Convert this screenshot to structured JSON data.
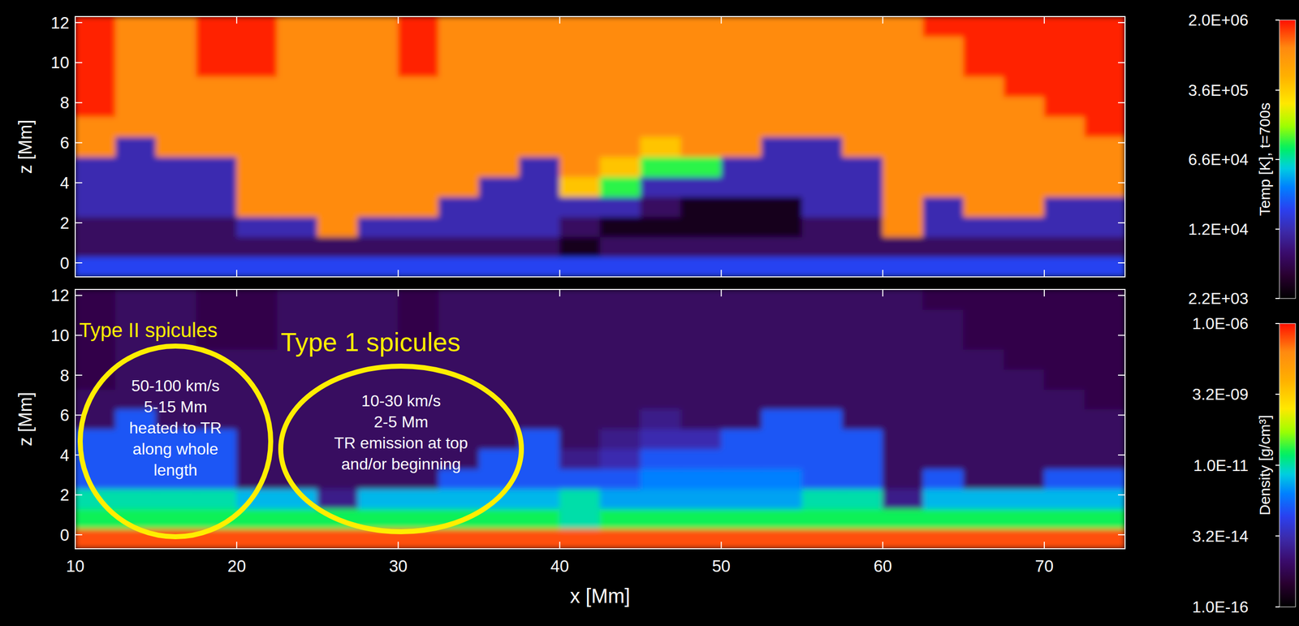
{
  "chart_data": [
    {
      "type": "heatmap",
      "ylabel": "z [Mm]",
      "x": [
        11.25,
        13.75,
        16.25,
        18.75,
        21.25,
        23.75,
        26.25,
        28.75,
        31.25,
        33.75,
        36.25,
        38.75,
        41.25,
        43.75,
        46.25,
        48.75,
        51.25,
        53.75,
        56.25,
        58.75,
        61.25,
        63.75,
        66.25,
        68.75,
        71.25,
        73.75
      ],
      "y": [
        -0.2,
        0.8,
        1.8,
        2.8,
        3.8,
        4.8,
        5.8,
        6.8,
        7.8,
        8.8,
        9.8,
        10.8,
        11.8
      ],
      "cells": [
        [
          20000.0,
          20000.0,
          20000.0,
          20000.0,
          20000.0,
          20000.0,
          20000.0,
          20000.0,
          20000.0,
          20000.0,
          20000.0,
          20000.0,
          20000.0,
          20000.0,
          20000.0,
          20000.0,
          20000.0,
          20000.0,
          20000.0,
          20000.0,
          20000.0,
          20000.0,
          20000.0,
          20000.0,
          20000.0,
          20000.0
        ],
        [
          6000.0,
          6000.0,
          6000.0,
          6000.0,
          6000.0,
          6000.0,
          6000.0,
          6000.0,
          6000.0,
          6000.0,
          6000.0,
          6000.0,
          3000.0,
          6000.0,
          6000.0,
          6000.0,
          6000.0,
          6000.0,
          6000.0,
          6000.0,
          6000.0,
          6000.0,
          6000.0,
          6000.0,
          6000.0,
          6000.0
        ],
        [
          6000.0,
          6000.0,
          6000.0,
          6000.0,
          12000.0,
          12000.0,
          1000000.0,
          12000.0,
          12000.0,
          12000.0,
          12000.0,
          12000.0,
          6000.0,
          3000.0,
          3000.0,
          3000.0,
          3000.0,
          3000.0,
          6000.0,
          6000.0,
          1000000.0,
          12000.0,
          12000.0,
          12000.0,
          12000.0,
          12000.0
        ],
        [
          12000.0,
          12000.0,
          12000.0,
          12000.0,
          1000000.0,
          1000000.0,
          1000000.0,
          1000000.0,
          1000000.0,
          12000.0,
          12000.0,
          12000.0,
          12000.0,
          12000.0,
          6000.0,
          3000.0,
          3000.0,
          3000.0,
          12000.0,
          12000.0,
          1000000.0,
          12000.0,
          1000000.0,
          1000000.0,
          12000.0,
          12000.0
        ],
        [
          12000.0,
          12000.0,
          12000.0,
          12000.0,
          1000000.0,
          1000000.0,
          1000000.0,
          1000000.0,
          1000000.0,
          1000000.0,
          12000.0,
          12000.0,
          400000.0,
          100000.0,
          12000.0,
          12000.0,
          12000.0,
          12000.0,
          12000.0,
          12000.0,
          1000000.0,
          1000000.0,
          1000000.0,
          1000000.0,
          1000000.0,
          1000000.0
        ],
        [
          12000.0,
          12000.0,
          12000.0,
          12000.0,
          1000000.0,
          1000000.0,
          1000000.0,
          1000000.0,
          1000000.0,
          1000000.0,
          1000000.0,
          12000.0,
          1000000.0,
          400000.0,
          100000.0,
          100000.0,
          12000.0,
          12000.0,
          12000.0,
          12000.0,
          1000000.0,
          1000000.0,
          1000000.0,
          1000000.0,
          1000000.0,
          1000000.0
        ],
        [
          1000000.0,
          12000.0,
          1000000.0,
          1000000.0,
          1000000.0,
          1000000.0,
          1000000.0,
          1000000.0,
          1000000.0,
          1000000.0,
          1000000.0,
          1000000.0,
          1000000.0,
          1000000.0,
          400000.0,
          1000000.0,
          1000000.0,
          12000.0,
          12000.0,
          1000000.0,
          1000000.0,
          1000000.0,
          1000000.0,
          1000000.0,
          1000000.0,
          1000000.0
        ],
        [
          1000000.0,
          1000000.0,
          1000000.0,
          1000000.0,
          1000000.0,
          1000000.0,
          1000000.0,
          1000000.0,
          1000000.0,
          1000000.0,
          1000000.0,
          1000000.0,
          1000000.0,
          1000000.0,
          1000000.0,
          1000000.0,
          1000000.0,
          1000000.0,
          1000000.0,
          1000000.0,
          1000000.0,
          1000000.0,
          1000000.0,
          1000000.0,
          1000000.0,
          1800000.0
        ],
        [
          1800000.0,
          1000000.0,
          1000000.0,
          1000000.0,
          1000000.0,
          1000000.0,
          1000000.0,
          1000000.0,
          1000000.0,
          1000000.0,
          1000000.0,
          1000000.0,
          1000000.0,
          1000000.0,
          1000000.0,
          1000000.0,
          1000000.0,
          1000000.0,
          1000000.0,
          1000000.0,
          1000000.0,
          1000000.0,
          1000000.0,
          1000000.0,
          1800000.0,
          1800000.0
        ],
        [
          1800000.0,
          1000000.0,
          1000000.0,
          1000000.0,
          1000000.0,
          1000000.0,
          1000000.0,
          1000000.0,
          1000000.0,
          1000000.0,
          1000000.0,
          1000000.0,
          1000000.0,
          1000000.0,
          1000000.0,
          1000000.0,
          1000000.0,
          1000000.0,
          1000000.0,
          1000000.0,
          1000000.0,
          1000000.0,
          1000000.0,
          1800000.0,
          1800000.0,
          1800000.0
        ],
        [
          1800000.0,
          1000000.0,
          1000000.0,
          1800000.0,
          1800000.0,
          1000000.0,
          1000000.0,
          1000000.0,
          1800000.0,
          1000000.0,
          1000000.0,
          1000000.0,
          1000000.0,
          1000000.0,
          1000000.0,
          1000000.0,
          1000000.0,
          1000000.0,
          1000000.0,
          1000000.0,
          1000000.0,
          1000000.0,
          1800000.0,
          1800000.0,
          1800000.0,
          1800000.0
        ],
        [
          1800000.0,
          1000000.0,
          1000000.0,
          1800000.0,
          1800000.0,
          1000000.0,
          1000000.0,
          1000000.0,
          1800000.0,
          1000000.0,
          1000000.0,
          1000000.0,
          1000000.0,
          1000000.0,
          1000000.0,
          1000000.0,
          1000000.0,
          1000000.0,
          1000000.0,
          1000000.0,
          1000000.0,
          1000000.0,
          1800000.0,
          1800000.0,
          1800000.0,
          1800000.0
        ],
        [
          1800000.0,
          1000000.0,
          1000000.0,
          1800000.0,
          1800000.0,
          1000000.0,
          1000000.0,
          1000000.0,
          1800000.0,
          1000000.0,
          1000000.0,
          1000000.0,
          1000000.0,
          1000000.0,
          1000000.0,
          1000000.0,
          1000000.0,
          1000000.0,
          1000000.0,
          1000000.0,
          1000000.0,
          1800000.0,
          1800000.0,
          1800000.0,
          1800000.0,
          1800000.0
        ]
      ],
      "xlim": [
        10,
        75
      ],
      "ylim": [
        -0.7,
        12.3
      ],
      "xticks": [
        10,
        20,
        30,
        40,
        50,
        60,
        70
      ],
      "yticks": [
        0,
        2,
        4,
        6,
        8,
        10,
        12
      ],
      "tick_labels": "y",
      "colorbar": {
        "label": "Temp [K], t=700s",
        "range": [
          2200,
          2000000
        ],
        "ticks": [
          {
            "value": 2200,
            "label": "2.2E+03"
          },
          {
            "value": 12000,
            "label": "1.2E+04"
          },
          {
            "value": 66000,
            "label": "6.6E+04"
          },
          {
            "value": 360000,
            "label": "3.6E+05"
          },
          {
            "value": 2000000,
            "label": "2.0E+06"
          }
        ]
      }
    },
    {
      "type": "heatmap",
      "xlabel": "x [Mm]",
      "ylabel": "z [Mm]",
      "x": [
        11.25,
        13.75,
        16.25,
        18.75,
        21.25,
        23.75,
        26.25,
        28.75,
        31.25,
        33.75,
        36.25,
        38.75,
        41.25,
        43.75,
        46.25,
        48.75,
        51.25,
        53.75,
        56.25,
        58.75,
        61.25,
        63.75,
        66.25,
        68.75,
        71.25,
        73.75
      ],
      "y": [
        -0.2,
        0.8,
        1.8,
        2.8,
        3.8,
        4.8,
        5.8,
        6.8,
        7.8,
        8.8,
        9.8,
        10.8,
        11.8
      ],
      "cells": [
        [
          3e-07,
          3e-07,
          3e-07,
          3e-07,
          3e-07,
          3e-07,
          3e-07,
          3e-07,
          3e-07,
          3e-07,
          3e-07,
          3e-07,
          3e-07,
          3e-07,
          3e-07,
          3e-07,
          3e-07,
          3e-07,
          3e-07,
          3e-07,
          3e-07,
          3e-07,
          3e-07,
          3e-07,
          3e-07,
          3e-07
        ],
        [
          3e-11,
          3e-11,
          3e-11,
          3e-11,
          3e-11,
          3e-11,
          3e-11,
          3e-11,
          3e-11,
          3e-11,
          3e-11,
          3e-11,
          1e-11,
          3e-11,
          3e-11,
          3e-11,
          3e-11,
          3e-11,
          3e-11,
          3e-11,
          3e-11,
          3e-11,
          3e-11,
          3e-11,
          3e-11,
          3e-11
        ],
        [
          1e-11,
          1e-11,
          1e-11,
          1e-11,
          3e-12,
          3e-12,
          1e-14,
          3e-12,
          3e-12,
          3e-12,
          3e-12,
          3e-12,
          1e-11,
          2e-12,
          2e-12,
          2e-12,
          2e-12,
          2e-12,
          1e-11,
          1e-11,
          1e-14,
          3e-12,
          3e-12,
          3e-12,
          3e-12,
          3e-12
        ],
        [
          3e-13,
          3e-13,
          3e-13,
          3e-13,
          3e-15,
          3e-15,
          3e-15,
          3e-15,
          3e-15,
          3e-13,
          3e-13,
          3e-13,
          3e-13,
          3e-13,
          1e-12,
          1e-12,
          1e-12,
          1e-12,
          3e-13,
          3e-13,
          3e-15,
          3e-13,
          3e-15,
          3e-15,
          3e-13,
          3e-13
        ],
        [
          3e-13,
          3e-13,
          3e-13,
          3e-13,
          3e-15,
          3e-15,
          3e-15,
          3e-15,
          3e-15,
          3e-15,
          3e-13,
          3e-13,
          1e-14,
          3e-14,
          3e-13,
          3e-13,
          3e-13,
          3e-13,
          3e-13,
          3e-13,
          3e-15,
          3e-15,
          3e-15,
          3e-15,
          3e-15,
          3e-15
        ],
        [
          3e-13,
          3e-13,
          3e-13,
          3e-13,
          3e-15,
          3e-15,
          3e-15,
          3e-15,
          3e-15,
          3e-15,
          3e-15,
          3e-13,
          3e-15,
          1e-14,
          3e-14,
          3e-14,
          3e-13,
          3e-13,
          3e-13,
          3e-13,
          3e-15,
          3e-15,
          3e-15,
          3e-15,
          3e-15,
          3e-15
        ],
        [
          3e-15,
          3e-13,
          3e-15,
          3e-15,
          3e-15,
          3e-15,
          3e-15,
          3e-15,
          3e-15,
          3e-15,
          3e-15,
          3e-15,
          3e-15,
          3e-15,
          1e-14,
          3e-15,
          3e-15,
          3e-13,
          3e-13,
          3e-15,
          3e-15,
          3e-15,
          3e-15,
          3e-15,
          3e-15,
          3e-15
        ],
        [
          3e-15,
          3e-15,
          3e-15,
          3e-15,
          3e-15,
          3e-15,
          3e-15,
          3e-15,
          3e-15,
          3e-15,
          3e-15,
          3e-15,
          3e-15,
          3e-15,
          3e-15,
          3e-15,
          3e-15,
          3e-15,
          3e-15,
          3e-15,
          3e-15,
          3e-15,
          3e-15,
          3e-15,
          3e-15,
          1.5e-15
        ],
        [
          1.5e-15,
          3e-15,
          3e-15,
          3e-15,
          3e-15,
          3e-15,
          3e-15,
          3e-15,
          3e-15,
          3e-15,
          3e-15,
          3e-15,
          3e-15,
          3e-15,
          3e-15,
          3e-15,
          3e-15,
          3e-15,
          3e-15,
          3e-15,
          3e-15,
          3e-15,
          3e-15,
          3e-15,
          1.5e-15,
          1.5e-15
        ],
        [
          1.5e-15,
          3e-15,
          3e-15,
          3e-15,
          3e-15,
          3e-15,
          3e-15,
          3e-15,
          3e-15,
          3e-15,
          3e-15,
          3e-15,
          3e-15,
          3e-15,
          3e-15,
          3e-15,
          3e-15,
          3e-15,
          3e-15,
          3e-15,
          3e-15,
          3e-15,
          3e-15,
          1.5e-15,
          1.5e-15,
          1.5e-15
        ],
        [
          1.5e-15,
          3e-15,
          3e-15,
          1.5e-15,
          1.5e-15,
          3e-15,
          3e-15,
          3e-15,
          1.5e-15,
          3e-15,
          3e-15,
          3e-15,
          3e-15,
          3e-15,
          3e-15,
          3e-15,
          3e-15,
          3e-15,
          3e-15,
          3e-15,
          3e-15,
          3e-15,
          1.5e-15,
          1.5e-15,
          1.5e-15,
          1.5e-15
        ],
        [
          1.5e-15,
          3e-15,
          3e-15,
          1.5e-15,
          1.5e-15,
          3e-15,
          3e-15,
          3e-15,
          1.5e-15,
          3e-15,
          3e-15,
          3e-15,
          3e-15,
          3e-15,
          3e-15,
          3e-15,
          3e-15,
          3e-15,
          3e-15,
          3e-15,
          3e-15,
          3e-15,
          1.5e-15,
          1.5e-15,
          1.5e-15,
          1.5e-15
        ],
        [
          1.5e-15,
          3e-15,
          3e-15,
          1.5e-15,
          1.5e-15,
          3e-15,
          3e-15,
          3e-15,
          1.5e-15,
          3e-15,
          3e-15,
          3e-15,
          3e-15,
          3e-15,
          3e-15,
          3e-15,
          3e-15,
          3e-15,
          3e-15,
          3e-15,
          3e-15,
          1.5e-15,
          1.5e-15,
          1.5e-15,
          1.5e-15,
          1.5e-15
        ]
      ],
      "xlim": [
        10,
        75
      ],
      "ylim": [
        -0.7,
        12.3
      ],
      "xticks": [
        10,
        20,
        30,
        40,
        50,
        60,
        70
      ],
      "yticks": [
        0,
        2,
        4,
        6,
        8,
        10,
        12
      ],
      "colorbar": {
        "label": "Density [g/cm³]",
        "range": [
          1e-16,
          1e-06
        ],
        "ticks": [
          {
            "value": 1e-16,
            "label": "1.0E-16"
          },
          {
            "value": 3.2e-14,
            "label": "3.2E-14"
          },
          {
            "value": 1e-11,
            "label": "1.0E-11"
          },
          {
            "value": 3.2e-09,
            "label": "3.2E-09"
          },
          {
            "value": 1e-06,
            "label": "1.0E-06"
          }
        ]
      },
      "annotations": [
        {
          "title": "Type II spicules",
          "lines": [
            "50-100 km/s",
            "5-15 Mm",
            "heated to TR",
            "along whole",
            "length"
          ]
        },
        {
          "title": "Type 1 spicules",
          "lines": [
            "10-30 km/s",
            "2-5 Mm",
            "TR emission at top",
            "and/or beginning"
          ]
        }
      ]
    }
  ]
}
